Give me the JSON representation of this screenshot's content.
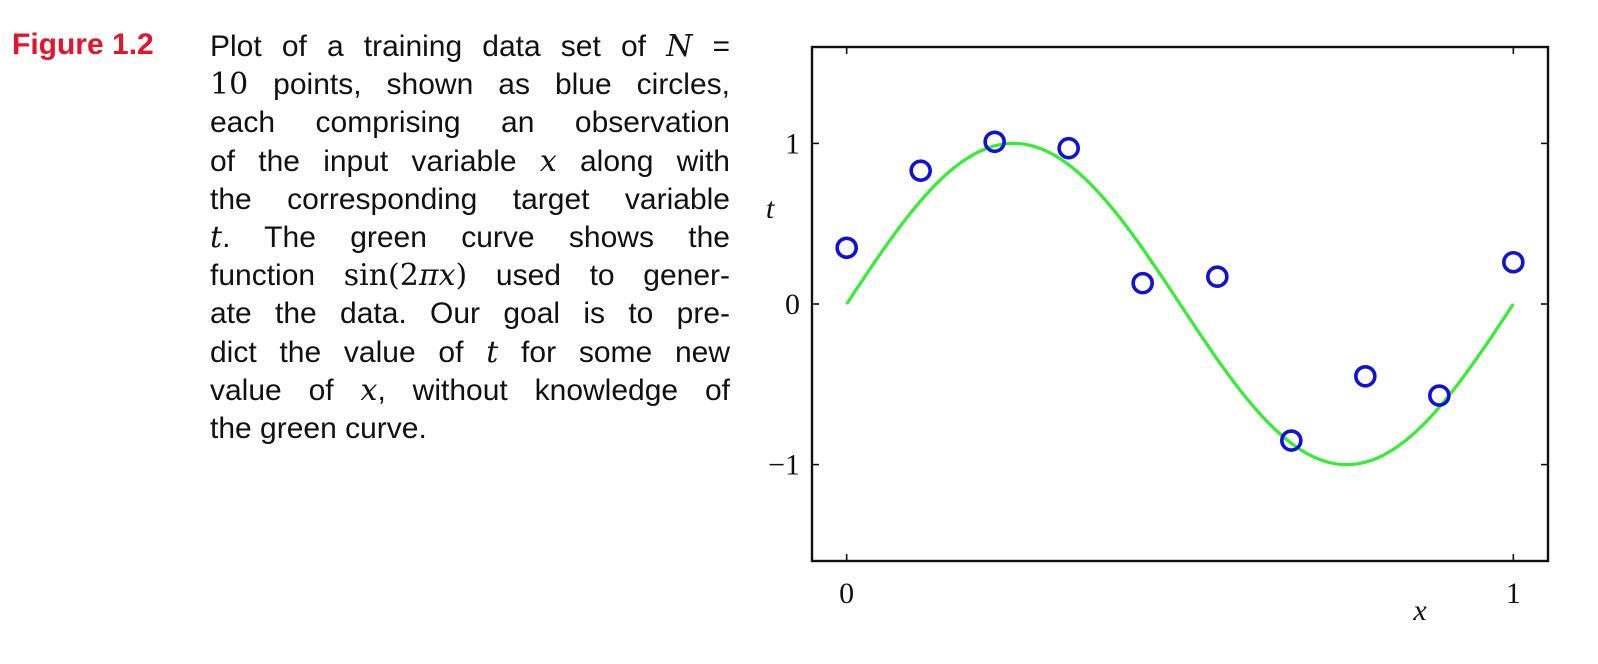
{
  "figure": {
    "label": "Figure 1.2",
    "caption_lines": [
      [
        {
          "t": "Plot of a training data set of "
        },
        {
          "m": "N"
        },
        {
          "t": " ="
        }
      ],
      [
        {
          "mr": "10"
        },
        {
          "t": " points, shown as blue circles,"
        }
      ],
      [
        {
          "t": "each comprising an observation"
        }
      ],
      [
        {
          "t": "of the input variable "
        },
        {
          "m": "x"
        },
        {
          "t": " along with"
        }
      ],
      [
        {
          "t": "the corresponding target variable"
        }
      ],
      [
        {
          "m": "t"
        },
        {
          "t": ".   The green curve shows the"
        }
      ],
      [
        {
          "t": "function "
        },
        {
          "mr": "sin(2"
        },
        {
          "m": "πx"
        },
        {
          "mr": ")"
        },
        {
          "t": " used to gener-"
        }
      ],
      [
        {
          "t": "ate the data.  Our goal is to pre-"
        }
      ],
      [
        {
          "t": "dict the value of "
        },
        {
          "m": "t"
        },
        {
          "t": " for some new"
        }
      ],
      [
        {
          "t": "value of "
        },
        {
          "m": "x"
        },
        {
          "t": ", without knowledge of"
        }
      ],
      [
        {
          "t": "the green curve."
        }
      ]
    ]
  },
  "colors": {
    "figure_label": "#e8132b",
    "curve": "#33ee33",
    "points": "#1010dd",
    "axes": "#111111"
  },
  "chart_data": {
    "type": "scatter",
    "title": "",
    "xlabel": "x",
    "ylabel": "t",
    "xlim": [
      -0.052,
      1.052
    ],
    "ylim": [
      -1.6,
      1.6
    ],
    "x_ticks": [
      0,
      1
    ],
    "x_tick_labels": [
      "0",
      "1"
    ],
    "y_ticks": [
      -1,
      0,
      1
    ],
    "y_tick_labels": [
      "−1",
      "0",
      "1"
    ],
    "grid": false,
    "legend": "none",
    "series": [
      {
        "kind": "curve",
        "function": "sin(2πx)",
        "x_range": [
          0,
          1
        ],
        "color": "#33ee33"
      },
      {
        "kind": "points",
        "marker": "open-circle",
        "color": "#1010dd",
        "x": [
          0.0,
          0.111,
          0.222,
          0.333,
          0.444,
          0.556,
          0.667,
          0.778,
          0.889,
          1.0
        ],
        "y": [
          0.35,
          0.83,
          1.01,
          0.97,
          0.13,
          0.17,
          -0.85,
          -0.45,
          -0.57,
          0.26
        ]
      }
    ]
  }
}
